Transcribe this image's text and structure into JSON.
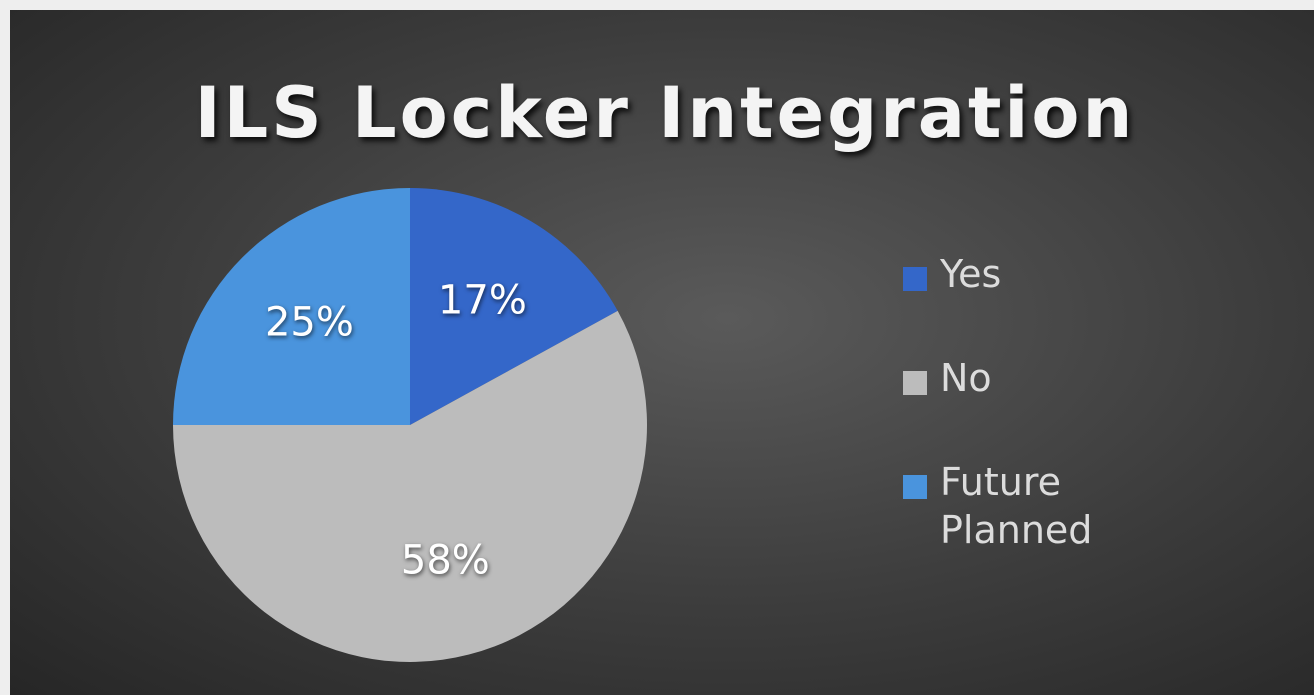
{
  "chart_data": {
    "type": "pie",
    "title": "ILS Locker Integration",
    "categories": [
      "Yes",
      "No",
      "Future Planned"
    ],
    "values": [
      17,
      58,
      25
    ],
    "value_labels": [
      "17%",
      "58%",
      "25%"
    ],
    "colors": [
      "#3467c9",
      "#bcbcbc",
      "#4a94dd"
    ],
    "legend": "right"
  }
}
